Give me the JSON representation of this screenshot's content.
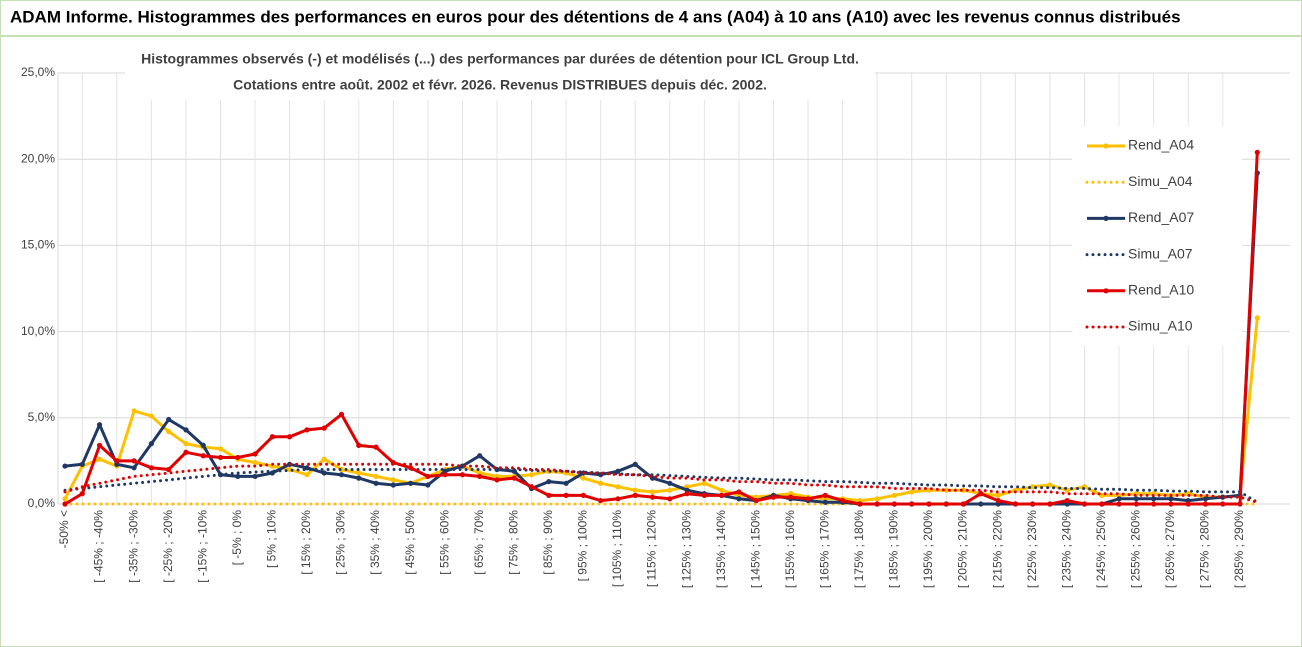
{
  "chart_data": {
    "type": "line",
    "title": "ADAM Informe. Histogrammes des performances en euros pour des détentions de 4 ans (A04) à 10 ans (A10) avec les revenus connus distribués",
    "subtitle": [
      "Histogrammes observés (-) et modélisés (...) des performances par durées de détention pour ICL Group Ltd.",
      "Cotations entre août. 2002 et févr. 2026. Revenus DISTRIBUES depuis déc. 2002."
    ],
    "categories": [
      "-50% <",
      null,
      "[ -45% ; -40%",
      null,
      "[ -35% ; -30%",
      null,
      "[ -25% ; -20%",
      null,
      "[ -15% ; -10%",
      null,
      "[ -5% ; 0%",
      null,
      "[ 5% ; 10%",
      null,
      "[ 15% ; 20%",
      null,
      "[ 25% ; 30%",
      null,
      "[ 35% ; 40%",
      null,
      "[ 45% ; 50%",
      null,
      "[ 55% ; 60%",
      null,
      "[ 65% ; 70%",
      null,
      "[ 75% ; 80%",
      null,
      "[ 85% ; 90%",
      null,
      "[ 95% ; 100%",
      null,
      "[ 105% ; 110%",
      null,
      "[ 115% ; 120%",
      null,
      "[ 125% ; 130%",
      null,
      "[ 135% ; 140%",
      null,
      "[ 145% ; 150%",
      null,
      "[ 155% ; 160%",
      null,
      "[ 165% ; 170%",
      null,
      "[ 175% ; 180%",
      null,
      "[ 185% ; 190%",
      null,
      "[ 195% ; 200%",
      null,
      "[ 205% ; 210%",
      null,
      "[ 215% ; 220%",
      null,
      "[ 225% ; 230%",
      null,
      "[ 235% ; 240%",
      null,
      "[ 245% ; 250%",
      null,
      "[ 255% ; 260%",
      null,
      "[ 265% ; 270%",
      null,
      "[ 275% ; 280%",
      null,
      "[ 285% ; 290%",
      null
    ],
    "series": [
      {
        "name": "Rend_A04",
        "color": "#ffc000",
        "style": "solid",
        "markers": true,
        "values": [
          0.3,
          2.2,
          2.6,
          2.2,
          5.4,
          5.1,
          4.2,
          3.5,
          3.3,
          3.2,
          2.6,
          2.4,
          2.2,
          2.0,
          1.7,
          2.6,
          2.0,
          1.8,
          1.6,
          1.4,
          1.2,
          1.6,
          2.0,
          2.2,
          1.8,
          1.6,
          1.6,
          1.7,
          1.9,
          1.8,
          1.5,
          1.2,
          1.0,
          0.8,
          0.7,
          0.8,
          1.0,
          1.2,
          0.8,
          0.5,
          0.4,
          0.5,
          0.6,
          0.4,
          0.3,
          0.3,
          0.2,
          0.3,
          0.5,
          0.7,
          0.8,
          0.8,
          0.8,
          0.6,
          0.5,
          0.8,
          1.0,
          1.1,
          0.8,
          1.0,
          0.5,
          0.5,
          0.6,
          0.6,
          0.5,
          0.6,
          0.4,
          0.4,
          0.5,
          10.8
        ]
      },
      {
        "name": "Simu_A04",
        "color": "#ffc000",
        "style": "dotted",
        "markers": false,
        "values": [
          0,
          0,
          0,
          0,
          0,
          0,
          0,
          0,
          0,
          0,
          0,
          0,
          0,
          0,
          0,
          0,
          0,
          0,
          0,
          0,
          0,
          0,
          0,
          0,
          0,
          0,
          0,
          0,
          0,
          0,
          0,
          0,
          0,
          0,
          0,
          0,
          0,
          0,
          0,
          0,
          0,
          0,
          0,
          0,
          0,
          0,
          0,
          0,
          0,
          0,
          0,
          0,
          0,
          0,
          0,
          0,
          0,
          0,
          0,
          0,
          0,
          0,
          0,
          0,
          0,
          0,
          0,
          0,
          0,
          0
        ]
      },
      {
        "name": "Rend_A07",
        "color": "#1f3864",
        "style": "solid",
        "markers": true,
        "values": [
          2.2,
          2.3,
          4.6,
          2.3,
          2.1,
          3.5,
          4.9,
          4.3,
          3.4,
          1.7,
          1.6,
          1.6,
          1.8,
          2.3,
          2.1,
          1.8,
          1.7,
          1.5,
          1.2,
          1.1,
          1.2,
          1.1,
          1.9,
          2.2,
          2.8,
          2.0,
          1.9,
          0.9,
          1.3,
          1.2,
          1.8,
          1.7,
          1.9,
          2.3,
          1.5,
          1.2,
          0.8,
          0.6,
          0.5,
          0.3,
          0.2,
          0.5,
          0.3,
          0.2,
          0.1,
          0.1,
          0,
          0,
          0,
          0,
          0,
          0,
          0,
          0,
          0,
          0,
          0,
          0,
          0,
          0,
          0,
          0.3,
          0.3,
          0.3,
          0.3,
          0.2,
          0.3,
          0.4,
          0.5,
          19.2
        ]
      },
      {
        "name": "Simu_A07",
        "color": "#1f3864",
        "style": "dotted",
        "markers": false,
        "values": [
          0.8,
          0.9,
          1.0,
          1.1,
          1.2,
          1.3,
          1.4,
          1.5,
          1.6,
          1.7,
          1.8,
          1.85,
          1.9,
          1.95,
          2.0,
          2.0,
          2.0,
          2.0,
          2.0,
          2.0,
          2.0,
          2.0,
          2.0,
          2.0,
          2.0,
          2.0,
          2.0,
          1.95,
          1.9,
          1.9,
          1.85,
          1.8,
          1.75,
          1.7,
          1.7,
          1.65,
          1.6,
          1.55,
          1.5,
          1.5,
          1.45,
          1.4,
          1.4,
          1.35,
          1.3,
          1.3,
          1.25,
          1.2,
          1.2,
          1.15,
          1.1,
          1.1,
          1.05,
          1.05,
          1.0,
          1.0,
          0.95,
          0.95,
          0.9,
          0.9,
          0.85,
          0.85,
          0.8,
          0.8,
          0.75,
          0.75,
          0.7,
          0.7,
          0.7,
          0.1
        ]
      },
      {
        "name": "Rend_A10",
        "color": "#e00000",
        "style": "solid",
        "markers": true,
        "values": [
          0,
          0.6,
          3.4,
          2.5,
          2.5,
          2.1,
          2.0,
          3.0,
          2.8,
          2.7,
          2.7,
          2.9,
          3.9,
          3.9,
          4.3,
          4.4,
          5.2,
          3.4,
          3.3,
          2.4,
          2.1,
          1.6,
          1.7,
          1.7,
          1.6,
          1.4,
          1.5,
          1.0,
          0.5,
          0.5,
          0.5,
          0.2,
          0.3,
          0.5,
          0.4,
          0.3,
          0.6,
          0.5,
          0.5,
          0.7,
          0.2,
          0.4,
          0.4,
          0.3,
          0.5,
          0.2,
          0,
          0,
          0,
          0,
          0,
          0,
          0,
          0.6,
          0.2,
          0,
          0,
          0,
          0.2,
          0,
          0,
          0,
          0,
          0,
          0,
          0,
          0,
          0,
          0,
          20.4
        ]
      },
      {
        "name": "Simu_A10",
        "color": "#e00000",
        "style": "dotted",
        "markers": false,
        "values": [
          0.7,
          1.0,
          1.2,
          1.4,
          1.6,
          1.7,
          1.8,
          1.9,
          2.0,
          2.1,
          2.2,
          2.2,
          2.3,
          2.3,
          2.3,
          2.3,
          2.3,
          2.3,
          2.3,
          2.3,
          2.3,
          2.3,
          2.3,
          2.2,
          2.2,
          2.1,
          2.1,
          2.0,
          2.0,
          1.9,
          1.8,
          1.8,
          1.7,
          1.7,
          1.6,
          1.5,
          1.5,
          1.4,
          1.4,
          1.3,
          1.3,
          1.2,
          1.2,
          1.1,
          1.1,
          1.0,
          1.0,
          1.0,
          0.9,
          0.9,
          0.9,
          0.8,
          0.8,
          0.8,
          0.7,
          0.7,
          0.7,
          0.7,
          0.6,
          0.6,
          0.6,
          0.6,
          0.5,
          0.5,
          0.5,
          0.5,
          0.5,
          0.4,
          0.4,
          0.1
        ]
      }
    ],
    "ylim": [
      0,
      25
    ],
    "yticks": [
      {
        "value": 0,
        "label": "0,0%"
      },
      {
        "value": 5,
        "label": "5,0%"
      },
      {
        "value": 10,
        "label": "10,0%"
      },
      {
        "value": 15,
        "label": "15,0%"
      },
      {
        "value": 20,
        "label": "20,0%"
      },
      {
        "value": 25,
        "label": "25,0%"
      }
    ],
    "grid": true,
    "legend": "right"
  }
}
